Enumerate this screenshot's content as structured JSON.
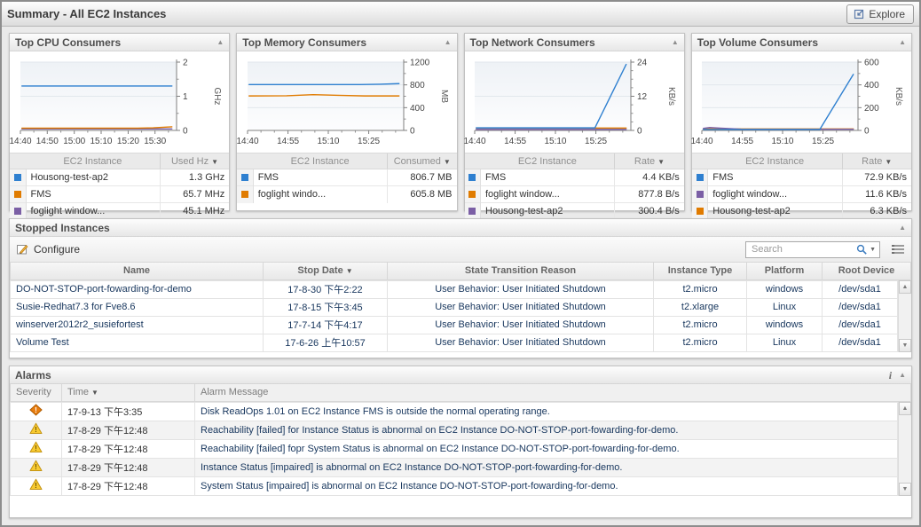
{
  "window": {
    "title": "Summary - All EC2 Instances",
    "explore_label": "Explore"
  },
  "consumer_panels": [
    {
      "title": "Top CPU Consumers",
      "legend": {
        "name_header": "EC2 Instance",
        "value_header": "Used Hz",
        "rows": [
          {
            "color": "#2f80d0",
            "name": "Housong-test-ap2",
            "value": "1.3 GHz"
          },
          {
            "color": "#e07b00",
            "name": "FMS",
            "value": "65.7 MHz"
          },
          {
            "color": "#7b5fa5",
            "name": "foglight window...",
            "value": "45.1 MHz"
          }
        ]
      },
      "chart_data": {
        "type": "line",
        "ylabel": "GHz",
        "ylim": [
          0,
          2
        ],
        "yticks": [
          0,
          1,
          2
        ],
        "yticks_minor": [
          0.5,
          1.5
        ],
        "xticks": [
          {
            "label": "14:40",
            "x": 0.0
          },
          {
            "label": "14:50",
            "x": 0.172
          },
          {
            "label": "15:00",
            "x": 0.345
          },
          {
            "label": "15:10",
            "x": 0.517
          },
          {
            "label": "15:20",
            "x": 0.69
          },
          {
            "label": "15:30",
            "x": 0.862
          }
        ],
        "xticks_minor": [
          0.086,
          0.259,
          0.431,
          0.603,
          0.776,
          0.948
        ],
        "series": [
          {
            "name": "Housong-test-ap2",
            "color": "#2f80d0",
            "points": [
              [
                0.01,
                1.3
              ],
              [
                0.97,
                1.3
              ]
            ]
          },
          {
            "name": "FMS",
            "color": "#e07b00",
            "points": [
              [
                0.01,
                0.066
              ],
              [
                0.75,
                0.066
              ],
              [
                0.85,
                0.075
              ],
              [
                0.97,
                0.105
              ]
            ]
          },
          {
            "name": "foglight window...",
            "color": "#7b5fa5",
            "points": [
              [
                0.01,
                0.045
              ],
              [
                0.97,
                0.045
              ]
            ]
          }
        ]
      }
    },
    {
      "title": "Top Memory Consumers",
      "legend": {
        "name_header": "EC2 Instance",
        "value_header": "Consumed",
        "rows": [
          {
            "color": "#2f80d0",
            "name": "FMS",
            "value": "806.7 MB"
          },
          {
            "color": "#e07b00",
            "name": "foglight windo...",
            "value": "605.8 MB"
          }
        ]
      },
      "chart_data": {
        "type": "line",
        "ylabel": "MB",
        "ylim": [
          0,
          1200
        ],
        "yticks": [
          0,
          400,
          800,
          1200
        ],
        "yticks_minor": [
          200,
          600,
          1000
        ],
        "xticks": [
          {
            "label": "14:40",
            "x": 0.0
          },
          {
            "label": "14:55",
            "x": 0.259
          },
          {
            "label": "15:10",
            "x": 0.517
          },
          {
            "label": "15:25",
            "x": 0.776
          }
        ],
        "xticks_minor": [
          0.086,
          0.172,
          0.345,
          0.431,
          0.603,
          0.69,
          0.862,
          0.948
        ],
        "series": [
          {
            "name": "FMS",
            "color": "#2f80d0",
            "points": [
              [
                0.01,
                806
              ],
              [
                0.72,
                806
              ],
              [
                0.85,
                812
              ],
              [
                0.97,
                822
              ]
            ]
          },
          {
            "name": "foglight windo...",
            "color": "#e07b00",
            "points": [
              [
                0.01,
                606
              ],
              [
                0.25,
                608
              ],
              [
                0.42,
                628
              ],
              [
                0.58,
                616
              ],
              [
                0.75,
                606
              ],
              [
                0.97,
                606
              ]
            ]
          }
        ]
      }
    },
    {
      "title": "Top Network Consumers",
      "legend": {
        "name_header": "EC2 Instance",
        "value_header": "Rate",
        "rows": [
          {
            "color": "#2f80d0",
            "name": "FMS",
            "value": "4.4 KB/s"
          },
          {
            "color": "#e07b00",
            "name": "foglight window...",
            "value": "877.8 B/s"
          },
          {
            "color": "#7b5fa5",
            "name": "Housong-test-ap2",
            "value": "300.4 B/s"
          }
        ]
      },
      "chart_data": {
        "type": "line",
        "ylabel": "KB/s",
        "ylim": [
          0,
          24
        ],
        "yticks": [
          0,
          12,
          24
        ],
        "yticks_minor": [
          3,
          6,
          9,
          15,
          18,
          21
        ],
        "xticks": [
          {
            "label": "14:40",
            "x": 0.0
          },
          {
            "label": "14:55",
            "x": 0.259
          },
          {
            "label": "15:10",
            "x": 0.517
          },
          {
            "label": "15:25",
            "x": 0.776
          }
        ],
        "xticks_minor": [
          0.086,
          0.172,
          0.345,
          0.431,
          0.603,
          0.69,
          0.862,
          0.948
        ],
        "series": [
          {
            "name": "FMS",
            "color": "#2f80d0",
            "points": [
              [
                0.01,
                0.9
              ],
              [
                0.77,
                0.9
              ],
              [
                0.97,
                23.2
              ]
            ]
          },
          {
            "name": "foglight window...",
            "color": "#e07b00",
            "points": [
              [
                0.01,
                0.85
              ],
              [
                0.97,
                0.85
              ]
            ]
          },
          {
            "name": "Housong-test-ap2",
            "color": "#7b5fa5",
            "points": [
              [
                0.01,
                0.35
              ],
              [
                0.97,
                0.35
              ]
            ]
          }
        ]
      }
    },
    {
      "title": "Top Volume Consumers",
      "legend": {
        "name_header": "EC2 Instance",
        "value_header": "Rate",
        "rows": [
          {
            "color": "#2f80d0",
            "name": "FMS",
            "value": "72.9 KB/s"
          },
          {
            "color": "#7b5fa5",
            "name": "foglight window...",
            "value": "11.6 KB/s"
          },
          {
            "color": "#e07b00",
            "name": "Housong-test-ap2",
            "value": "6.3 KB/s"
          }
        ]
      },
      "chart_data": {
        "type": "line",
        "ylabel": "KB/s",
        "ylim": [
          0,
          600
        ],
        "yticks": [
          0,
          200,
          400,
          600
        ],
        "yticks_minor": [
          100,
          300,
          500
        ],
        "xticks": [
          {
            "label": "14:40",
            "x": 0.0
          },
          {
            "label": "14:55",
            "x": 0.259
          },
          {
            "label": "15:10",
            "x": 0.517
          },
          {
            "label": "15:25",
            "x": 0.776
          }
        ],
        "xticks_minor": [
          0.086,
          0.172,
          0.345,
          0.431,
          0.603,
          0.69,
          0.862,
          0.948
        ],
        "series": [
          {
            "name": "FMS",
            "color": "#2f80d0",
            "points": [
              [
                0.01,
                8
              ],
              [
                0.755,
                8
              ],
              [
                0.97,
                492
              ]
            ]
          },
          {
            "name": "foglight window...",
            "color": "#7b5fa5",
            "points": [
              [
                0.01,
                18
              ],
              [
                0.05,
                26
              ],
              [
                0.12,
                20
              ],
              [
                0.25,
                11
              ],
              [
                0.97,
                10
              ]
            ]
          },
          {
            "name": "Housong-test-ap2",
            "color": "#e07b00",
            "points": [
              [
                0.01,
                13
              ],
              [
                0.97,
                13
              ]
            ]
          }
        ]
      }
    }
  ],
  "stopped_instances": {
    "title": "Stopped Instances",
    "configure_label": "Configure",
    "search_placeholder": "Search",
    "columns": [
      "Name",
      "Stop Date",
      "State Transition Reason",
      "Instance Type",
      "Platform",
      "Root Device"
    ],
    "sorted_column": "Stop Date",
    "rows": [
      {
        "name": "DO-NOT-STOP-port-fowarding-for-demo",
        "stop_date": "17-8-30 下午2:22",
        "reason": "User Behavior: User Initiated Shutdown",
        "type": "t2.micro",
        "platform": "windows",
        "root_device": "/dev/sda1"
      },
      {
        "name": "Susie-Redhat7.3 for Fve8.6",
        "stop_date": "17-8-15 下午3:45",
        "reason": "User Behavior: User Initiated Shutdown",
        "type": "t2.xlarge",
        "platform": "Linux",
        "root_device": "/dev/sda1"
      },
      {
        "name": "winserver2012r2_susiefortest",
        "stop_date": "17-7-14 下午4:17",
        "reason": "User Behavior: User Initiated Shutdown",
        "type": "t2.micro",
        "platform": "windows",
        "root_device": "/dev/sda1"
      },
      {
        "name": "Volume Test",
        "stop_date": "17-6-26 上午10:57",
        "reason": "User Behavior: User Initiated Shutdown",
        "type": "t2.micro",
        "platform": "Linux",
        "root_device": "/dev/sda1"
      }
    ]
  },
  "alarms": {
    "title": "Alarms",
    "columns": [
      "Severity",
      "Time",
      "Alarm Message"
    ],
    "sorted_column": "Time",
    "rows": [
      {
        "severity": "critical",
        "time": "17-9-13 下午3:35",
        "message": "Disk ReadOps 1.01 on EC2 Instance FMS is outside the normal operating range."
      },
      {
        "severity": "warning",
        "time": "17-8-29 下午12:48",
        "message": "Reachability [failed] for Instance Status is abnormal on EC2 Instance DO-NOT-STOP-port-fowarding-for-demo."
      },
      {
        "severity": "warning",
        "time": "17-8-29 下午12:48",
        "message": "Reachability [failed] fopr System Status is abnormal on EC2 Instance DO-NOT-STOP-port-fowarding-for-demo."
      },
      {
        "severity": "warning",
        "time": "17-8-29 下午12:48",
        "message": "Instance Status [impaired] is abnormal on EC2 Instance DO-NOT-STOP-port-fowarding-for-demo."
      },
      {
        "severity": "warning",
        "time": "17-8-29 下午12:48",
        "message": "System Status [impaired] is abnormal on EC2 Instance DO-NOT-STOP-port-fowarding-for-demo."
      }
    ]
  }
}
